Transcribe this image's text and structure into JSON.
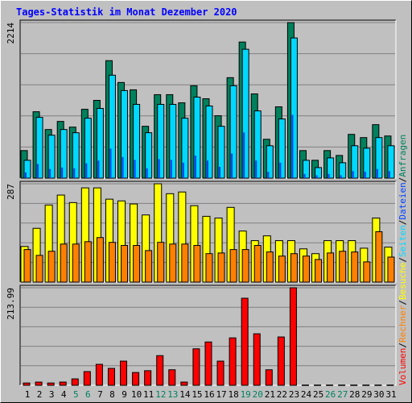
{
  "chart_data": [
    {
      "type": "bar",
      "title": "Tages-Statistik im Monat Dezember 2020",
      "legend_separator": "/",
      "ylim": [
        0,
        2214
      ],
      "yticks": [
        2214
      ],
      "series": [
        {
          "name": "Anfragen",
          "color": "#00805c",
          "values": [
            392,
            945,
            692,
            807,
            726,
            980,
            1107,
            1672,
            1361,
            1257,
            738,
            1188,
            1188,
            1072,
            1315,
            1130,
            888,
            1430,
            1937,
            1199,
            553,
            1015,
            2214,
            392,
            254,
            392,
            323,
            623,
            577,
            761,
            600
          ]
        },
        {
          "name": "Dateien",
          "color": "#0040ff",
          "values": [
            80,
            200,
            130,
            150,
            140,
            210,
            250,
            420,
            300,
            260,
            140,
            270,
            260,
            220,
            320,
            250,
            160,
            350,
            650,
            250,
            90,
            220,
            900,
            60,
            40,
            60,
            40,
            100,
            90,
            130,
            100
          ]
        },
        {
          "name": "Seiten",
          "color": "#00d8ff",
          "values": [
            254,
            865,
            611,
            692,
            646,
            853,
            992,
            1465,
            1246,
            1050,
            646,
            1050,
            1050,
            853,
            1153,
            1027,
            738,
            1315,
            1834,
            957,
            461,
            842,
            1995,
            254,
            150,
            288,
            219,
            461,
            426,
            577,
            461
          ]
        }
      ]
    },
    {
      "type": "bar",
      "ylim": [
        0,
        287
      ],
      "yticks": [
        287
      ],
      "series": [
        {
          "name": "Besuche",
          "color": "#ffff00",
          "values": [
            104,
            157,
            225,
            254,
            232,
            275,
            275,
            242,
            237,
            228,
            196,
            287,
            258,
            263,
            223,
            192,
            187,
            218,
            149,
            121,
            135,
            121,
            121,
            97,
            83,
            121,
            121,
            121,
            99,
            187,
            102
          ]
        },
        {
          "name": "Rechner",
          "color": "#ff8000",
          "values": [
            95,
            78,
            90,
            111,
            111,
            118,
            130,
            116,
            107,
            107,
            92,
            116,
            111,
            111,
            107,
            83,
            85,
            95,
            95,
            107,
            88,
            76,
            83,
            76,
            66,
            85,
            90,
            88,
            59,
            147,
            73
          ]
        }
      ]
    },
    {
      "type": "bar",
      "ylim": [
        0,
        213.99
      ],
      "yticks": [
        213.99
      ],
      "categories": [
        "1",
        "2",
        "3",
        "4",
        "5",
        "6",
        "7",
        "8",
        "9",
        "10",
        "11",
        "12",
        "13",
        "14",
        "15",
        "16",
        "17",
        "18",
        "19",
        "20",
        "21",
        "22",
        "23",
        "24",
        "25",
        "26",
        "27",
        "28",
        "29",
        "30",
        "31"
      ],
      "category_colors": [
        "#000000",
        "#000000",
        "#000000",
        "#000000",
        "#008060",
        "#008060",
        "#000000",
        "#000000",
        "#000000",
        "#000000",
        "#000000",
        "#008060",
        "#008060",
        "#000000",
        "#000000",
        "#000000",
        "#000000",
        "#000000",
        "#008060",
        "#008060",
        "#000000",
        "#000000",
        "#000000",
        "#000000",
        "#000000",
        "#008060",
        "#008060",
        "#000000",
        "#000000",
        "#000000",
        "#000000"
      ],
      "series": [
        {
          "name": "Volumen",
          "color": "#ff0000",
          "values": [
            5,
            7,
            5,
            7,
            14,
            30,
            46,
            37,
            53,
            28,
            32,
            65,
            34,
            7,
            80,
            95,
            53,
            104,
            191,
            113,
            34,
            106,
            213.99,
            0.5,
            0.5,
            0.5,
            0.5,
            0.5,
            0.5,
            0.5,
            0.5
          ]
        }
      ]
    }
  ]
}
